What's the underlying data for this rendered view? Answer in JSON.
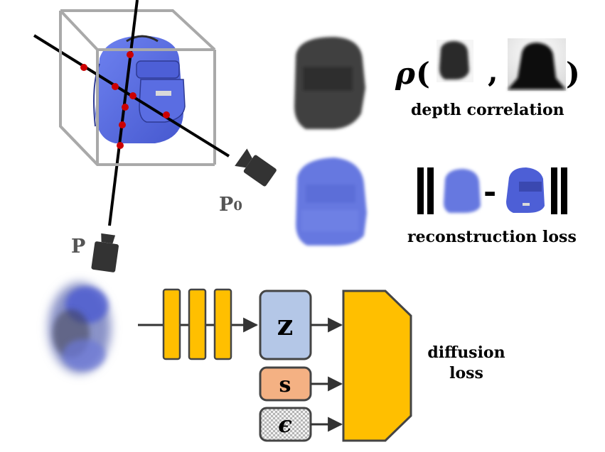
{
  "camera_labels": {
    "p0_main": "P",
    "p0_sub": "0",
    "p": "P"
  },
  "depth_row": {
    "rho": "ρ",
    "open": "(",
    "comma": ",",
    "close": ")",
    "caption": "depth correlation"
  },
  "recon_row": {
    "minus": "-",
    "caption": "reconstruction loss"
  },
  "network": {
    "z": "z",
    "s": "s",
    "epsilon": "ϵ",
    "output_label_line1": "diffusion",
    "output_label_line2": "loss"
  },
  "colors": {
    "backpack_blue": "#5b6fe0",
    "ray": "#000000",
    "ray_point": "#cc0000",
    "box": "#a9a9a9",
    "encoder_block": "#ffbf00",
    "z_box": "#b4c7e7",
    "s_box": "#f4b183",
    "decoder": "#ffbf00"
  },
  "icons": [
    "camera-icon-p0",
    "camera-icon-p",
    "backpack-3d",
    "noisy-render-blob"
  ]
}
